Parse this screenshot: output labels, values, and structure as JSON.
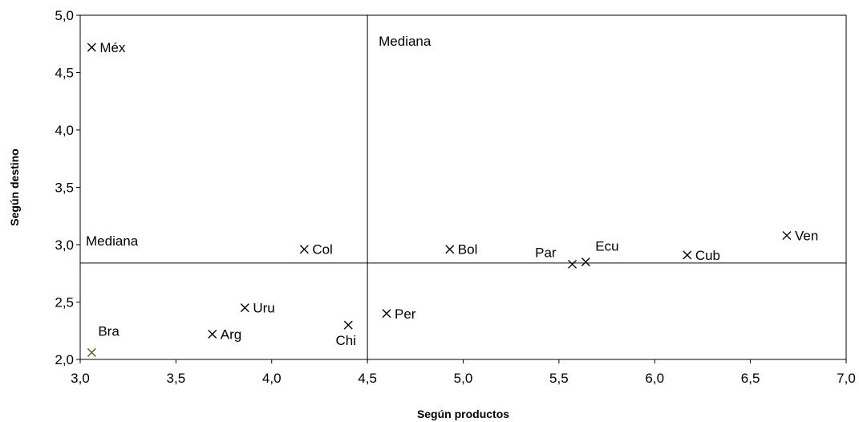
{
  "chart_data": {
    "type": "scatter",
    "xlabel": "Según productos",
    "ylabel": "Según destino",
    "xlim": [
      3.0,
      7.0
    ],
    "ylim": [
      2.0,
      5.0
    ],
    "x_ticks": [
      "3,0",
      "3,5",
      "4,0",
      "4,5",
      "5,0",
      "5,5",
      "6,0",
      "6,5",
      "7,0"
    ],
    "y_ticks": [
      "2,0",
      "2,5",
      "3,0",
      "3,5",
      "4,0",
      "4,5",
      "5,0"
    ],
    "grid": false,
    "marker": "x",
    "points": [
      {
        "label": "Méx",
        "x": 3.06,
        "y": 4.72
      },
      {
        "label": "Col",
        "x": 4.17,
        "y": 2.96
      },
      {
        "label": "Bol",
        "x": 4.93,
        "y": 2.96
      },
      {
        "label": "Par",
        "x": 5.57,
        "y": 2.83
      },
      {
        "label": "Ecu",
        "x": 5.64,
        "y": 2.85
      },
      {
        "label": "Cub",
        "x": 6.17,
        "y": 2.91
      },
      {
        "label": "Ven",
        "x": 6.69,
        "y": 3.08
      },
      {
        "label": "Uru",
        "x": 3.86,
        "y": 2.45
      },
      {
        "label": "Per",
        "x": 4.6,
        "y": 2.4
      },
      {
        "label": "Arg",
        "x": 3.69,
        "y": 2.22
      },
      {
        "label": "Chi",
        "x": 4.4,
        "y": 2.3
      },
      {
        "label": "Bra",
        "x": 3.06,
        "y": 2.06,
        "color": "#5a5a1e"
      }
    ],
    "median_x": 4.5,
    "median_y": 2.84,
    "median_label": "Mediana"
  }
}
